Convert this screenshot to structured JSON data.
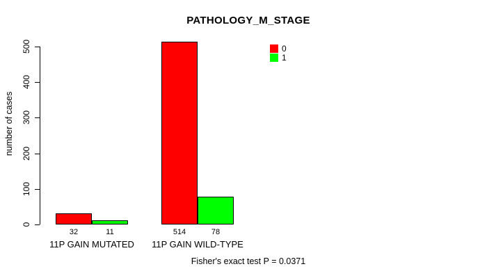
{
  "chart_data": {
    "type": "bar",
    "title": "PATHOLOGY_M_STAGE",
    "ylabel": "number of cases",
    "ylim": [
      0,
      500
    ],
    "yticks": [
      0,
      100,
      200,
      300,
      400,
      500
    ],
    "categories": [
      "11P GAIN MUTATED",
      "11P GAIN WILD-TYPE"
    ],
    "series": [
      {
        "name": "0",
        "color": "#ff0000",
        "values": [
          32,
          514
        ]
      },
      {
        "name": "1",
        "color": "#00ff00",
        "values": [
          11,
          78
        ]
      }
    ],
    "legend": {
      "position": "top-right",
      "entries": [
        {
          "label": "0",
          "color": "#ff0000"
        },
        {
          "label": "1",
          "color": "#00ff00"
        }
      ]
    },
    "footer": "Fisher's exact test P = 0.0371",
    "grid": false,
    "background": "#ffffff",
    "bar_border_color": "#000000"
  }
}
